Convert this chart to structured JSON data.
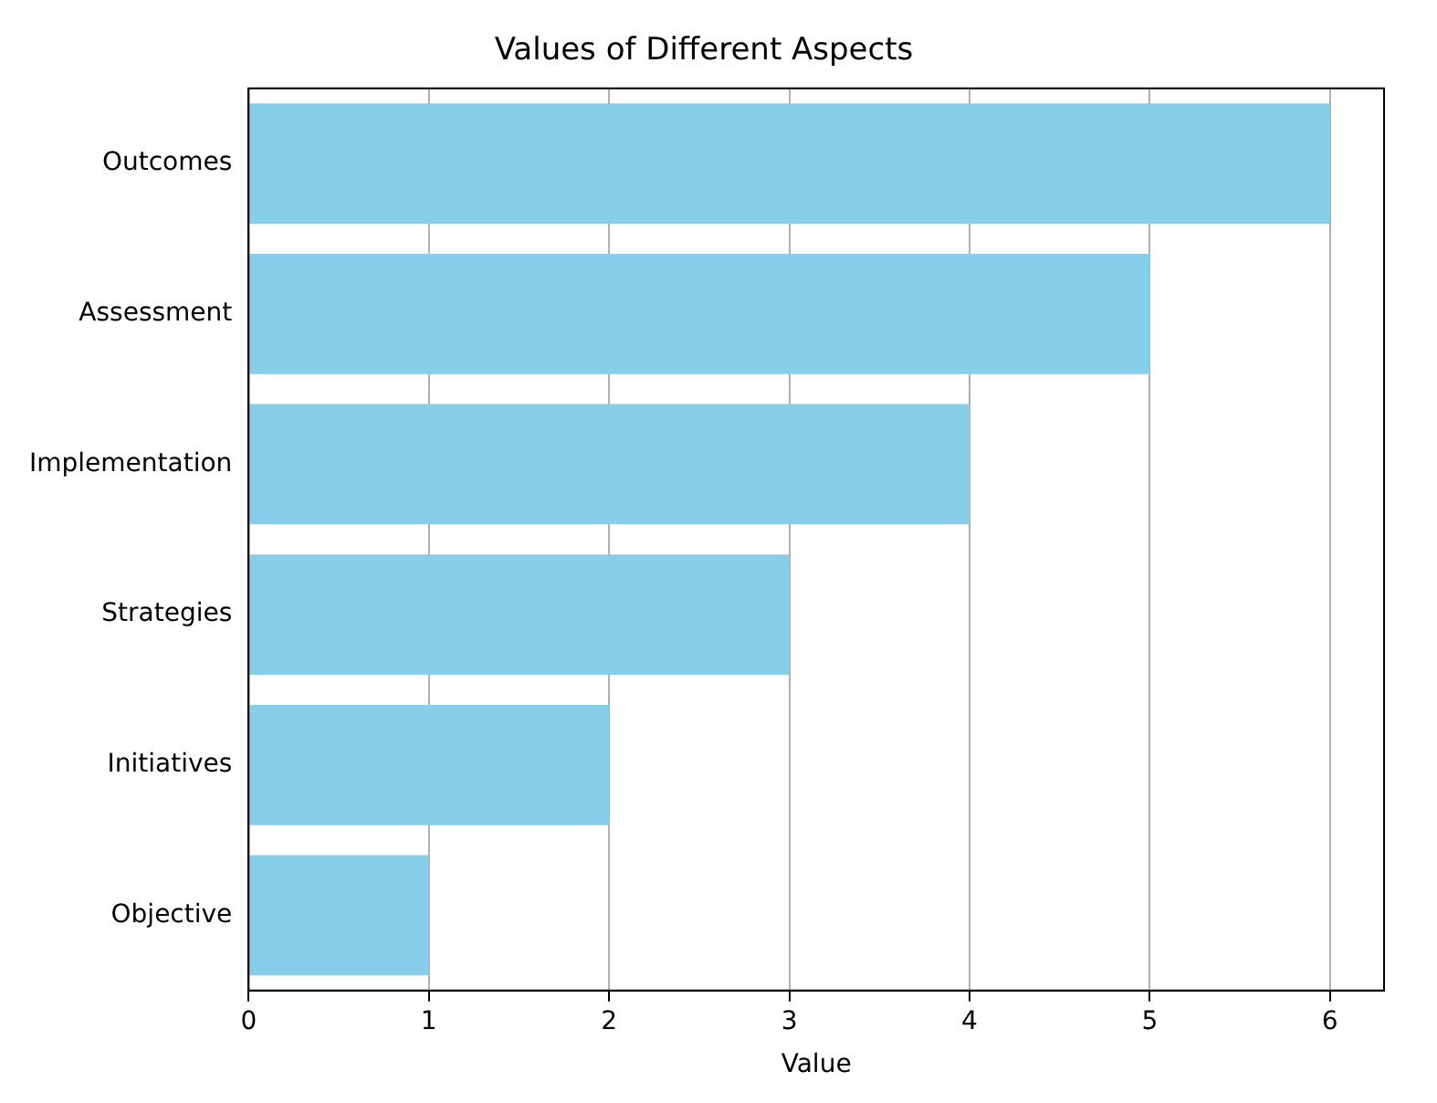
{
  "chart_data": {
    "type": "bar",
    "orientation": "horizontal",
    "title": "Values of Different Aspects",
    "xlabel": "Value",
    "categories": [
      "Outcomes",
      "Assessment",
      "Implementation",
      "Strategies",
      "Initiatives",
      "Objective"
    ],
    "values": [
      6,
      5,
      4,
      3,
      2,
      1
    ],
    "color": "#87ceeb",
    "xlim": [
      0,
      6.3
    ],
    "xticks": [
      0,
      1,
      2,
      3,
      4,
      5,
      6
    ],
    "grid": "x",
    "legend": false
  }
}
